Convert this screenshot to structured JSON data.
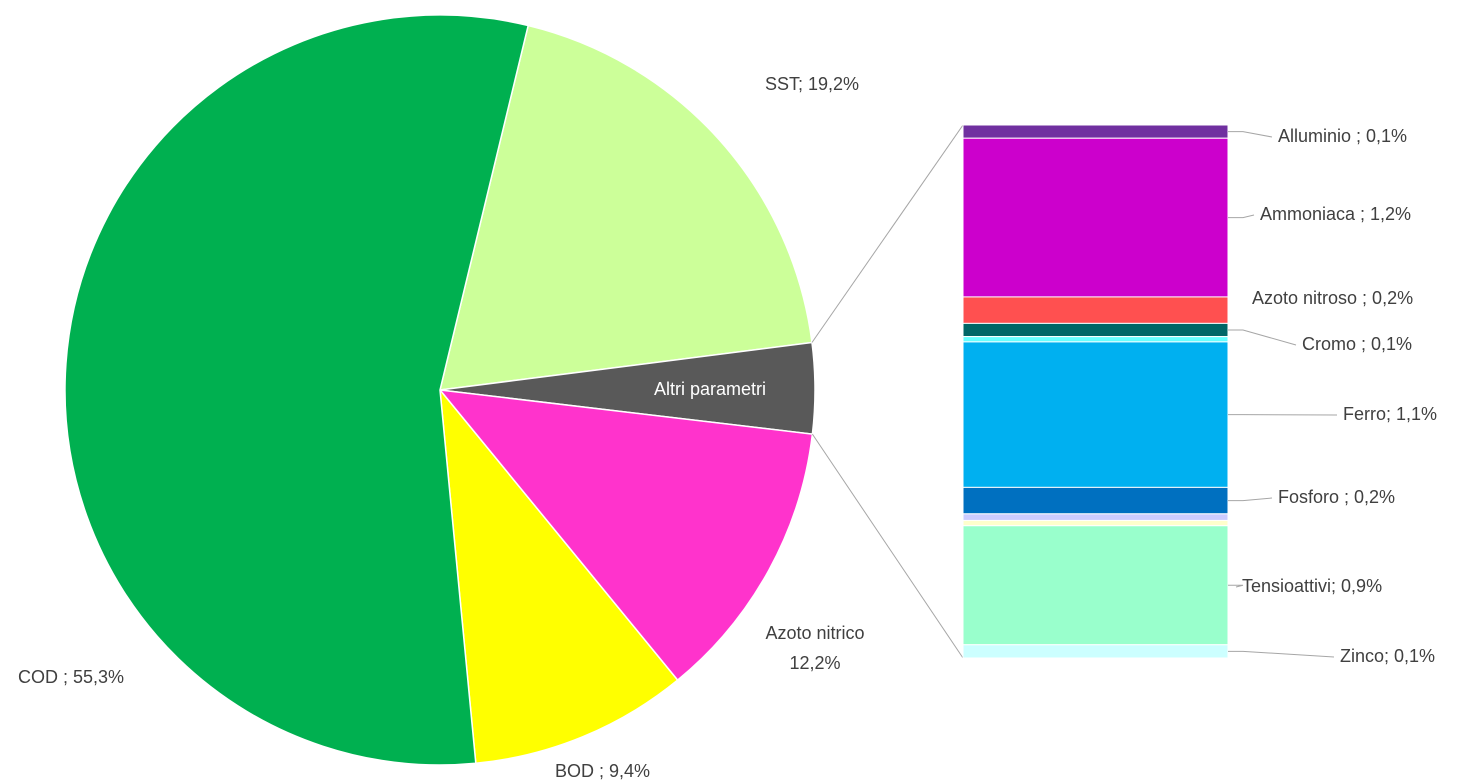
{
  "chart_data": {
    "type": "pie_of_bar",
    "pie": {
      "value_labels": [
        "SST; 19,2%",
        "Altri parametri",
        [
          "Azoto nitrico",
          "12,2%"
        ],
        "BOD ; 9,4%",
        "COD ; 55,3%"
      ],
      "values": [
        19.2,
        3.9,
        12.2,
        9.4,
        55.3
      ],
      "colors": [
        "#ccff99",
        "#595959",
        "#ff33cc",
        "#ffff00",
        "#00b050"
      ]
    },
    "bar": {
      "value_labels": [
        "Alluminio ; 0,1%",
        "Ammoniaca ; 1,2%",
        "Azoto nitroso ; 0,2%",
        "Cromo ; 0,1%",
        null,
        "Ferro; 1,1%",
        "Fosforo ; 0,2%",
        null,
        null,
        "Tensioattivi; 0,9%",
        "Zinco; 0,1%"
      ],
      "values": [
        0.1,
        1.2,
        0.2,
        0.1,
        0.04,
        1.1,
        0.2,
        0.05,
        0.04,
        0.9,
        0.1
      ],
      "colors": [
        "#7030a0",
        "#cc00cc",
        "#ff5050",
        "#006666",
        "#66ffff",
        "#00b0f0",
        "#0070c0",
        "#ccccff",
        "#ffffcc",
        "#99ffcc",
        "#ccffff"
      ]
    }
  }
}
